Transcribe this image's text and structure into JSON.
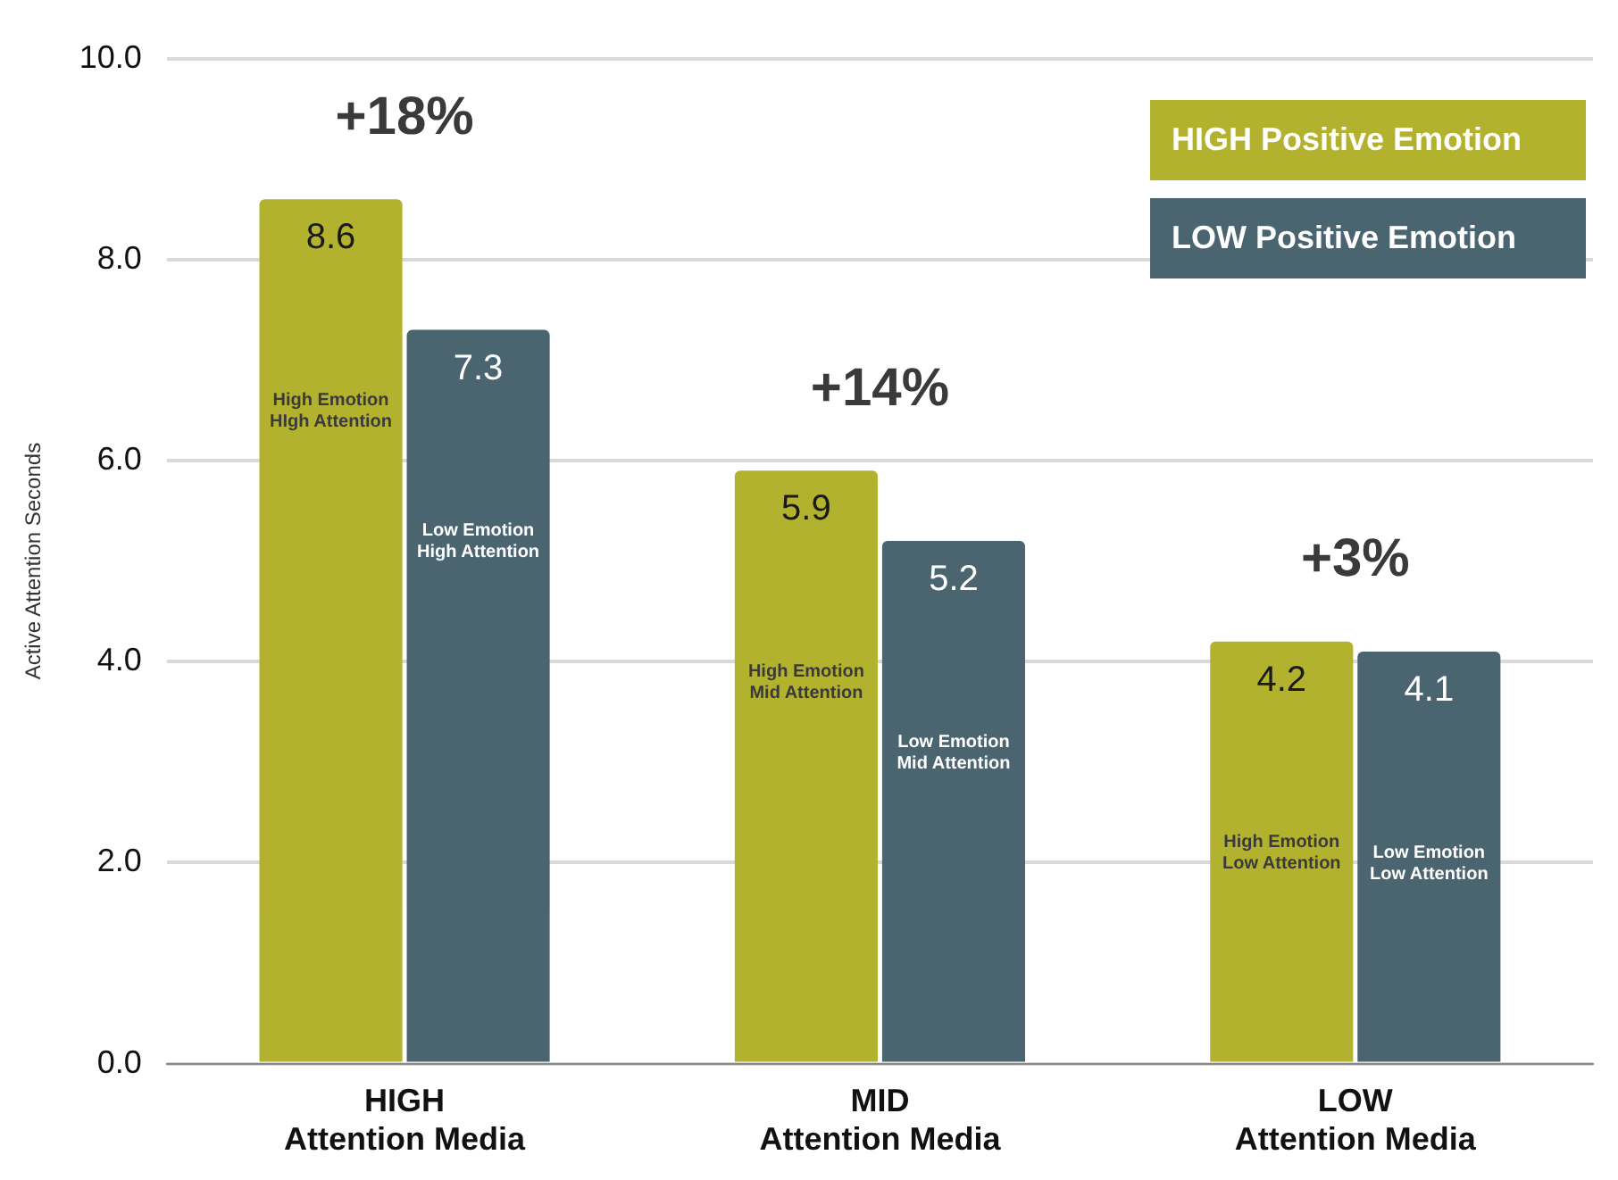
{
  "chart_data": {
    "type": "bar",
    "ylabel": "Active Attention Seconds",
    "categories": [
      "HIGH\nAttention Media",
      "MID\nAttention Media",
      "LOW\nAttention Media"
    ],
    "series": [
      {
        "name": "HIGH Positive Emotion",
        "color": "#b3b22e",
        "values": [
          8.6,
          5.9,
          4.2
        ]
      },
      {
        "name": "LOW Positive Emotion",
        "color": "#4a6470",
        "values": [
          7.3,
          5.2,
          4.1
        ]
      }
    ],
    "ylim": [
      0,
      10
    ],
    "yticks": [
      {
        "value": 0,
        "label": "0.0"
      },
      {
        "value": 2,
        "label": "2.0"
      },
      {
        "value": 4,
        "label": "4.0"
      },
      {
        "value": 6,
        "label": "6.0"
      },
      {
        "value": 8,
        "label": "8.0"
      },
      {
        "value": 10,
        "label": "10.0"
      }
    ],
    "grid": "y",
    "legend": "top right",
    "data_labels": true,
    "annotations": [
      "+18%",
      "+14%",
      "+3%",
      "High Emotion\nHIgh Attention",
      "Low Emotion\nHigh Attention",
      "High Emotion\nMid Attention",
      "Low Emotion\nMid Attention",
      "High Emotion\nLow Attention",
      "Low Emotion\nLow Attention"
    ]
  }
}
